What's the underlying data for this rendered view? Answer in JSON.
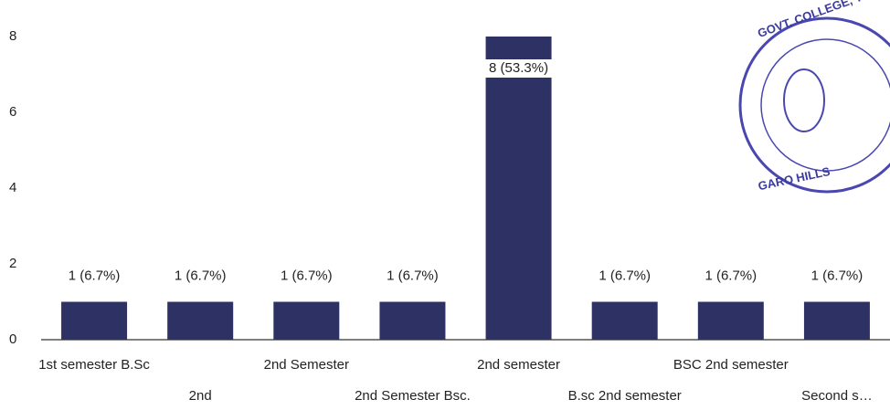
{
  "chart_data": {
    "type": "bar",
    "categories": [
      "1st semester B.Sc",
      "2nd",
      "2nd Semester",
      "2nd Semester Bsc.",
      "2nd semester",
      "B.sc 2nd semester",
      "BSC 2nd semester",
      "Second s…"
    ],
    "values": [
      1,
      1,
      1,
      1,
      8,
      1,
      1,
      1
    ],
    "value_labels": [
      "1 (6.7%)",
      "1 (6.7%)",
      "1 (6.7%)",
      "1 (6.7%)",
      "8 (53.3%)",
      "1 (6.7%)",
      "1 (6.7%)",
      "1 (6.7%)"
    ],
    "color": "#2e3163",
    "ylim": [
      0,
      8
    ],
    "yticks": [
      0,
      2,
      4,
      6,
      8
    ],
    "grid": false,
    "annotations": [
      "GOVT. COLLEGE, TU",
      "GARO HILLS"
    ]
  }
}
